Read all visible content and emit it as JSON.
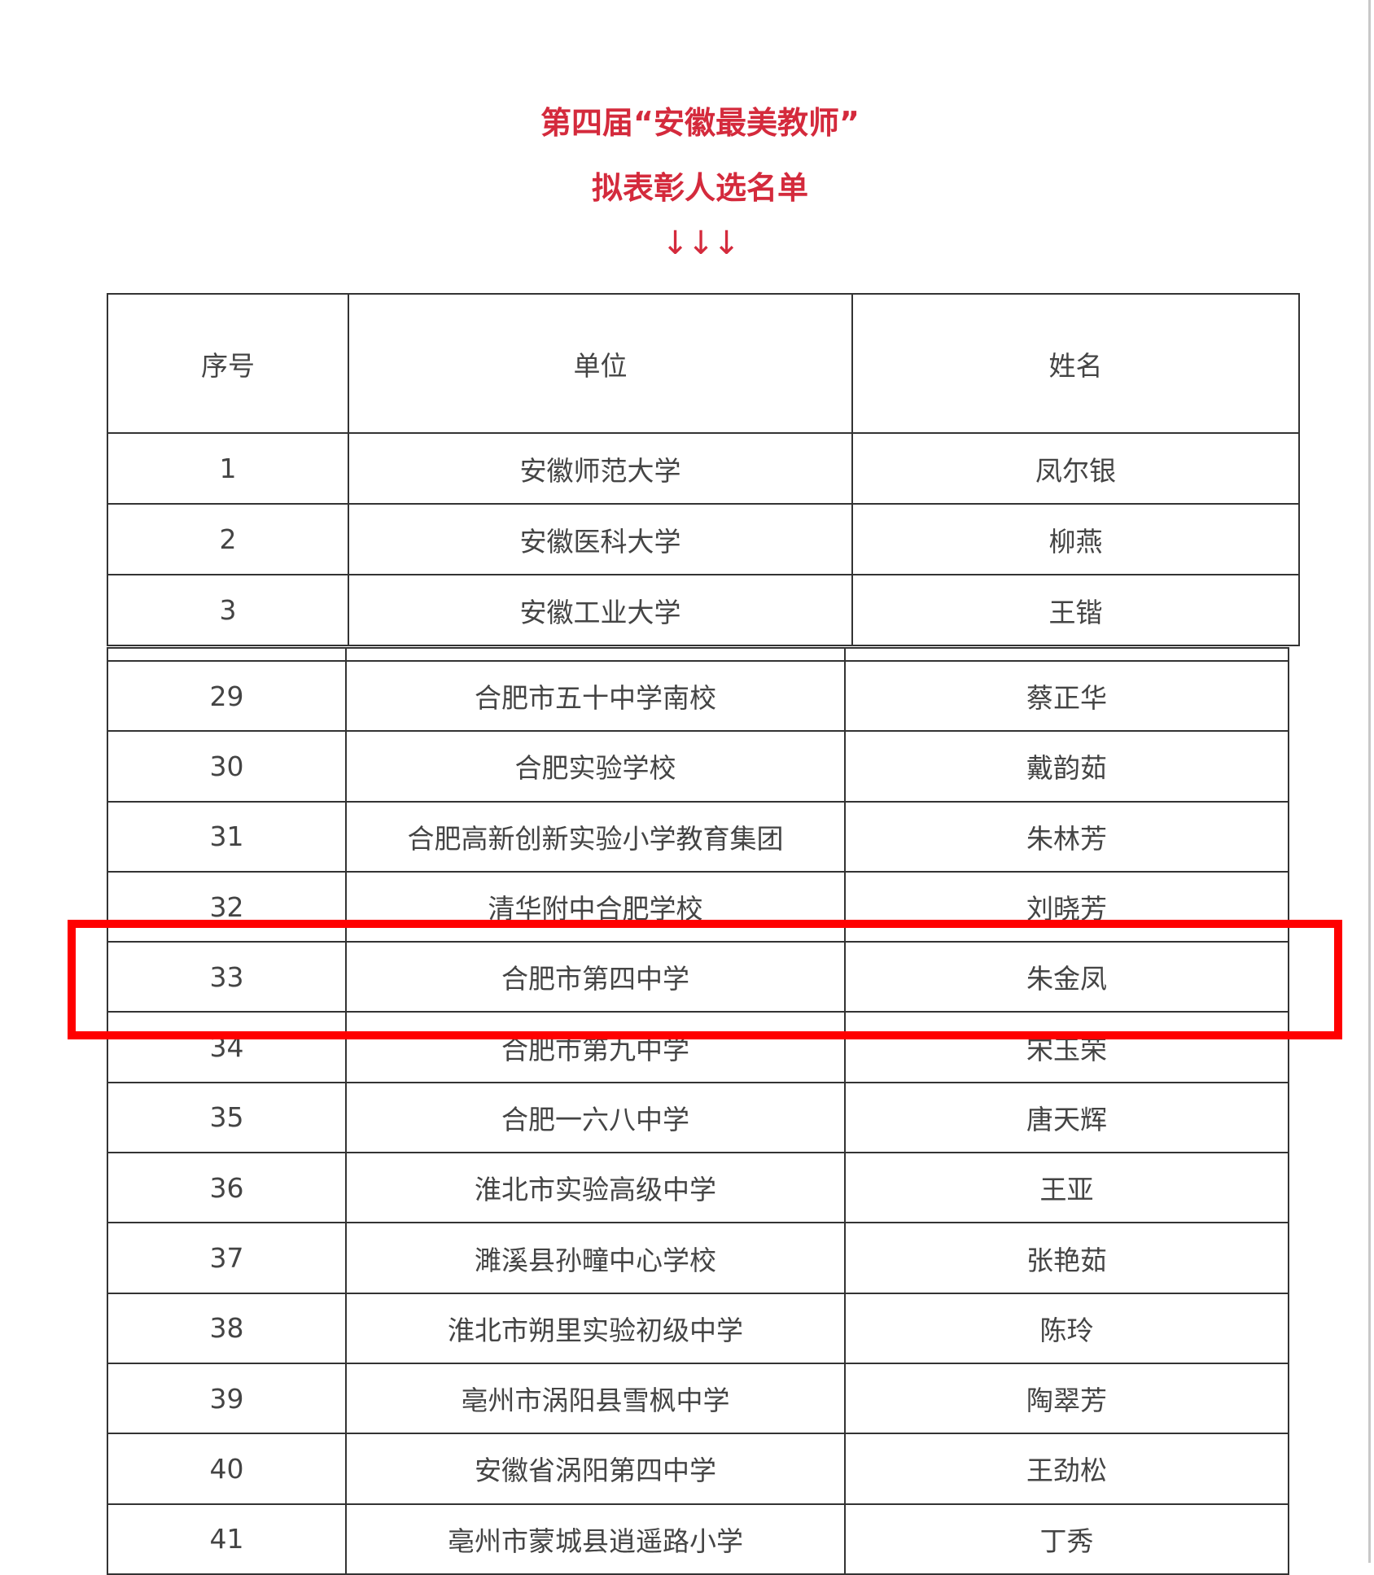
{
  "title_line1": "第四届“安徽最美教师”",
  "title_line2": "拟表彰人选名单",
  "arrows": "↓↓↓",
  "accent_color": "#d42a3c",
  "highlight_color": "#ff0000",
  "columns": [
    "序号",
    "单位",
    "姓名"
  ],
  "rows_top": [
    [
      "1",
      "安徽师范大学",
      "凤尔银"
    ],
    [
      "2",
      "安徽医科大学",
      "柳燕"
    ],
    [
      "3",
      "安徽工业大学",
      "王锴"
    ]
  ],
  "rows_bottom": [
    [
      "29",
      "合肥市五十中学南校",
      "蔡正华"
    ],
    [
      "30",
      "合肥实验学校",
      "戴韵茹"
    ],
    [
      "31",
      "合肥高新创新实验小学教育集团",
      "朱林芳"
    ],
    [
      "32",
      "清华附中合肥学校",
      "刘晓芳"
    ],
    [
      "33",
      "合肥市第四中学",
      "朱金凤"
    ],
    [
      "34",
      "合肥市第九中学",
      "宋玉荣"
    ],
    [
      "35",
      "合肥一六八中学",
      "唐天辉"
    ],
    [
      "36",
      "淮北市实验高级中学",
      "王亚"
    ],
    [
      "37",
      "濉溪县孙疃中心学校",
      "张艳茹"
    ],
    [
      "38",
      "淮北市朔里实验初级中学",
      "陈玲"
    ],
    [
      "39",
      "亳州市涡阳县雪枫中学",
      "陶翠芳"
    ],
    [
      "40",
      "安徽省涡阳第四中学",
      "王劲松"
    ],
    [
      "41",
      "亳州市蒙城县逍遥路小学",
      "丁秀"
    ]
  ],
  "highlighted_row": "33"
}
